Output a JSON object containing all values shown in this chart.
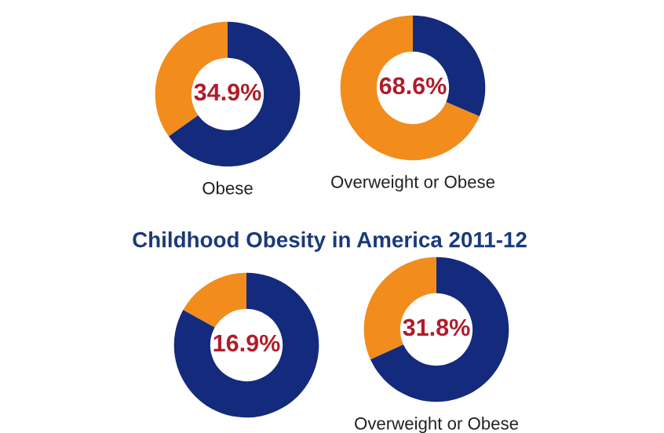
{
  "chart_data": [
    {
      "type": "donut",
      "categories": [
        null,
        null
      ],
      "values": [
        34.9,
        65.1
      ],
      "colors": [
        "#f28c1c",
        "#142a7c"
      ],
      "value_labels": [
        "34.9%",
        null
      ],
      "xlabel": "Obese"
    },
    {
      "type": "donut",
      "categories": [
        null,
        null
      ],
      "values": [
        68.6,
        31.4
      ],
      "colors": [
        "#f28c1c",
        "#142a7c"
      ],
      "value_labels": [
        "68.6%",
        null
      ],
      "xlabel": "Overweight or Obese"
    },
    {
      "type": "donut",
      "categories": [
        null,
        null
      ],
      "values": [
        16.9,
        83.1
      ],
      "colors": [
        "#f28c1c",
        "#142a7c"
      ],
      "value_labels": [
        "16.9%",
        null
      ],
      "title": "Childhood Obesity in America 2011-12"
    },
    {
      "type": "donut",
      "categories": [
        null,
        null
      ],
      "values": [
        31.8,
        68.2
      ],
      "colors": [
        "#f28c1c",
        "#142a7c"
      ],
      "value_labels": [
        "31.8%",
        null
      ],
      "xlabel": "Overweight or Obese"
    }
  ]
}
